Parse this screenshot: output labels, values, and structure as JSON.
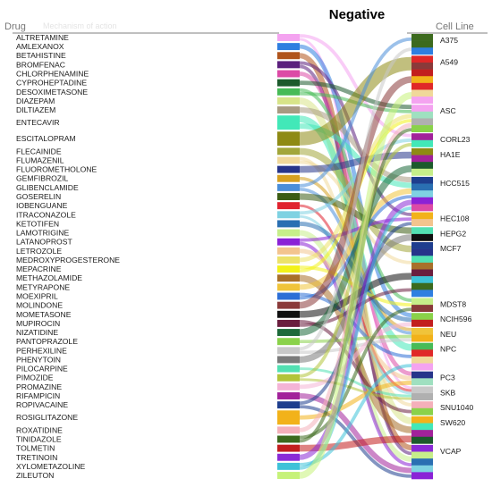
{
  "chart_data": {
    "type": "sankey",
    "title": "Negative",
    "left_header": "Drug",
    "right_header": "Cell Line",
    "ghost_header": "Mechanism of action",
    "drugs": [
      {
        "name": "ALTRETAMINE",
        "color": "#f4a3f0"
      },
      {
        "name": "AMLEXANOX",
        "color": "#2f7fe0"
      },
      {
        "name": "BETAHISTINE",
        "color": "#b0541c"
      },
      {
        "name": "BROMFENAC",
        "color": "#5b1f7e"
      },
      {
        "name": "CHLORPHENAMINE",
        "color": "#dc4aa6"
      },
      {
        "name": "CYPROHEPTADINE",
        "color": "#1c5a2c"
      },
      {
        "name": "DESOXIMETASONE",
        "color": "#47bb57"
      },
      {
        "name": "DIAZEPAM",
        "color": "#d8e489"
      },
      {
        "name": "DILTIAZEM",
        "color": "#a89a82"
      },
      {
        "name": "ENTECAVIR",
        "color": "#42e8b8"
      },
      {
        "name": "ESCITALOPRAM",
        "color": "#8e8a14"
      },
      {
        "name": "FLECAINIDE",
        "color": "#a2a63a"
      },
      {
        "name": "FLUMAZENIL",
        "color": "#f0d89a"
      },
      {
        "name": "FLUOROMETHOLONE",
        "color": "#26348a"
      },
      {
        "name": "GEMFIBROZIL",
        "color": "#d6a020"
      },
      {
        "name": "GLIBENCLAMIDE",
        "color": "#4a8ed8"
      },
      {
        "name": "GOSERELIN",
        "color": "#3c5d14"
      },
      {
        "name": "IOBENGUANE",
        "color": "#e0232f"
      },
      {
        "name": "ITRACONAZOLE",
        "color": "#7fd2e2"
      },
      {
        "name": "KETOTIFEN",
        "color": "#2a6fb2"
      },
      {
        "name": "LAMOTRIGINE",
        "color": "#c6ee8a"
      },
      {
        "name": "LATANOPROST",
        "color": "#8a22d6"
      },
      {
        "name": "LETROZOLE",
        "color": "#f3c48e"
      },
      {
        "name": "MEDROXYPROGESTERONE",
        "color": "#ece26a"
      },
      {
        "name": "MEPACRINE",
        "color": "#f2f21a"
      },
      {
        "name": "METHAZOLAMIDE",
        "color": "#a8702a"
      },
      {
        "name": "METYRAPONE",
        "color": "#f0c43a"
      },
      {
        "name": "MOEXIPRIL",
        "color": "#2d6fd6"
      },
      {
        "name": "MOLINDONE",
        "color": "#8a3a3a"
      },
      {
        "name": "MOMETASONE",
        "color": "#101010"
      },
      {
        "name": "MUPIROCIN",
        "color": "#6a1e3e"
      },
      {
        "name": "NIZATIDINE",
        "color": "#1c6a3a"
      },
      {
        "name": "PANTOPRAZOLE",
        "color": "#8ad24a"
      },
      {
        "name": "PERHEXILINE",
        "color": "#c8c8c8"
      },
      {
        "name": "PHENYTOIN",
        "color": "#7a7a7a"
      },
      {
        "name": "PILOCARPINE",
        "color": "#52e0b2"
      },
      {
        "name": "PIMOZIDE",
        "color": "#b2c43a"
      },
      {
        "name": "PROMAZINE",
        "color": "#f4b4d6"
      },
      {
        "name": "RIFAMPICIN",
        "color": "#a2229a"
      },
      {
        "name": "ROPIVACAINE",
        "color": "#1e3e8e"
      },
      {
        "name": "ROSIGLITAZONE",
        "color": "#f2b21a"
      },
      {
        "name": "ROXATIDINE",
        "color": "#f4b0ba"
      },
      {
        "name": "TINIDAZOLE",
        "color": "#3c6a1e"
      },
      {
        "name": "TOLMETIN",
        "color": "#c21e1e"
      },
      {
        "name": "TRETINOIN",
        "color": "#8a2ad6"
      },
      {
        "name": "XYLOMETAZOLINE",
        "color": "#3ec2d8"
      },
      {
        "name": "ZILEUTON",
        "color": "#c6f27a"
      }
    ],
    "cell_lines": [
      {
        "name": "A375",
        "color": "#3c6a1e"
      },
      {
        "name": "A549",
        "color": "#e02828"
      },
      {
        "name": "ASC",
        "color": "#f4a3f0"
      },
      {
        "name": "CORL23",
        "color": "#a2229a"
      },
      {
        "name": "HA1E",
        "color": "#8e8a14"
      },
      {
        "name": "HCC515",
        "color": "#1e3e8e"
      },
      {
        "name": "HEC108",
        "color": "#f2b21a"
      },
      {
        "name": "HEPG2",
        "color": "#52e0b2"
      },
      {
        "name": "MCF7",
        "color": "#1e3e8e"
      },
      {
        "name": "MDST8",
        "color": "#c6ee8a"
      },
      {
        "name": "NCIH596",
        "color": "#8ad24a"
      },
      {
        "name": "NEU",
        "color": "#f0c43a"
      },
      {
        "name": "NPC",
        "color": "#47bb57"
      },
      {
        "name": "PC3",
        "color": "#26348a"
      },
      {
        "name": "SKB",
        "color": "#c8c8c8"
      },
      {
        "name": "SNU1040",
        "color": "#f4b0ba"
      },
      {
        "name": "SW620",
        "color": "#f2b21a"
      },
      {
        "name": "VCAP",
        "color": "#8a2ad6"
      }
    ]
  }
}
